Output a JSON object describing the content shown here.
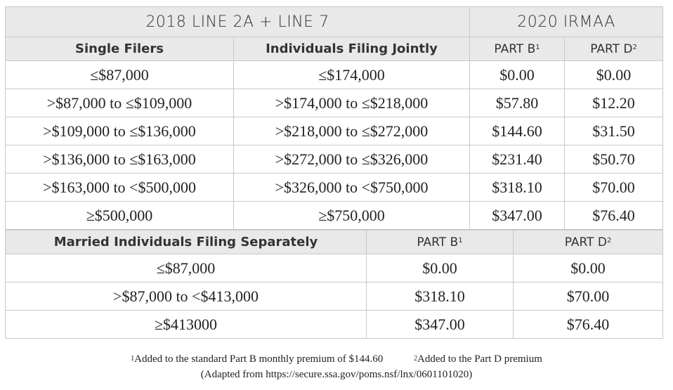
{
  "table1": {
    "group_headers": [
      "2018 LINE 2A + LINE 7",
      "2020 IRMAA"
    ],
    "columns": [
      "Single Filers",
      "Individuals Filing Jointly",
      "PART B",
      "PART D"
    ],
    "column_footnote_marks": [
      "",
      "",
      "1",
      "2"
    ],
    "rows": [
      [
        "≤$87,000",
        "≤$174,000",
        "$0.00",
        "$0.00"
      ],
      [
        ">$87,000 to ≤$109,000",
        ">$174,000 to ≤$218,000",
        "$57.80",
        "$12.20"
      ],
      [
        ">$109,000 to ≤$136,000",
        ">$218,000 to ≤$272,000",
        "$144.60",
        "$31.50"
      ],
      [
        ">$136,000 to ≤$163,000",
        ">$272,000 to ≤$326,000",
        "$231.40",
        "$50.70"
      ],
      [
        ">$163,000 to <$500,000",
        ">$326,000 to <$750,000",
        "$318.10",
        "$70.00"
      ],
      [
        "≥$500,000",
        "≥$750,000",
        "$347.00",
        "$76.40"
      ]
    ]
  },
  "table2": {
    "columns": [
      "Married Individuals Filing Separately",
      "PART B",
      "PART D"
    ],
    "column_footnote_marks": [
      "",
      "1",
      "2"
    ],
    "rows": [
      [
        "≤$87,000",
        "$0.00",
        "$0.00"
      ],
      [
        ">$87,000 to <$413,000",
        "$318.10",
        "$70.00"
      ],
      [
        "≥$413000",
        "$347.00",
        "$76.40"
      ]
    ]
  },
  "footnotes": {
    "note1_mark": "1",
    "note1": "Added to the standard Part B monthly premium of $144.60",
    "note2_mark": "2",
    "note2": "Added to the Part D premium",
    "source": "(Adapted from https://secure.ssa.gov/poms.nsf/lnx/0601101020)"
  },
  "colors": {
    "header_bg": "#e9e9e9",
    "border": "#c8c8c8"
  }
}
